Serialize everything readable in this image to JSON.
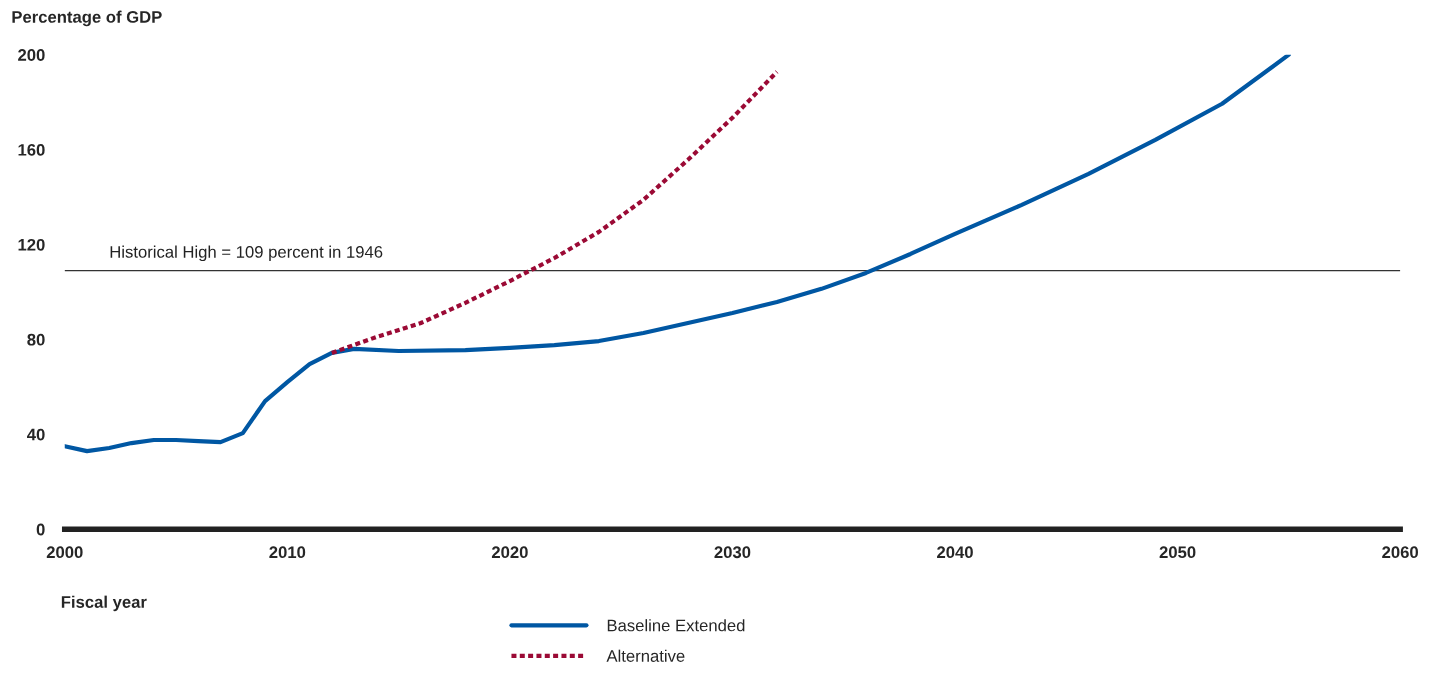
{
  "chart_data": {
    "type": "line",
    "xlabel": "Fiscal year",
    "ylabel": "Percentage of GDP",
    "xlim": [
      2000,
      2060
    ],
    "xticks": [
      2000,
      2010,
      2020,
      2030,
      2040,
      2050,
      2060
    ],
    "ylim": [
      0,
      200
    ],
    "yticks": [
      0,
      40,
      80,
      120,
      160,
      200
    ],
    "grid": false,
    "legend": "bottom",
    "marker": "none",
    "ref_lines": [
      {
        "axis": "y",
        "value": 109,
        "label": "Historical High = 109 percent in 1946",
        "color": "#333333"
      }
    ],
    "series": [
      {
        "name": "Baseline Extended",
        "color": "#0057a3",
        "line_style": "solid",
        "x": [
          2000,
          2001,
          2002,
          2003,
          2004,
          2005,
          2006,
          2007,
          2008,
          2009,
          2010,
          2011,
          2012,
          2013,
          2015,
          2018,
          2020,
          2022,
          2024,
          2026,
          2028,
          2030,
          2032,
          2034,
          2036,
          2038,
          2040,
          2043,
          2046,
          2049,
          2052,
          2055
        ],
        "values": [
          35.0,
          32.9,
          34.2,
          36.3,
          37.6,
          37.6,
          37.1,
          36.7,
          40.5,
          54.0,
          62.0,
          69.6,
          74.3,
          76.0,
          75.1,
          75.5,
          76.4,
          77.6,
          79.3,
          82.7,
          86.9,
          91.1,
          95.8,
          101.3,
          108.0,
          116.0,
          124.5,
          136.7,
          149.8,
          164.1,
          179.3,
          200.0
        ]
      },
      {
        "name": "Alternative",
        "color": "#9b0a35",
        "line_style": "dotted",
        "x": [
          2012,
          2014,
          2016,
          2018,
          2020,
          2022,
          2024,
          2026,
          2028,
          2030,
          2032
        ],
        "values": [
          74.3,
          81.0,
          86.9,
          95.4,
          104.6,
          114.3,
          125.3,
          138.8,
          155.7,
          173.4,
          192.8
        ]
      }
    ]
  }
}
